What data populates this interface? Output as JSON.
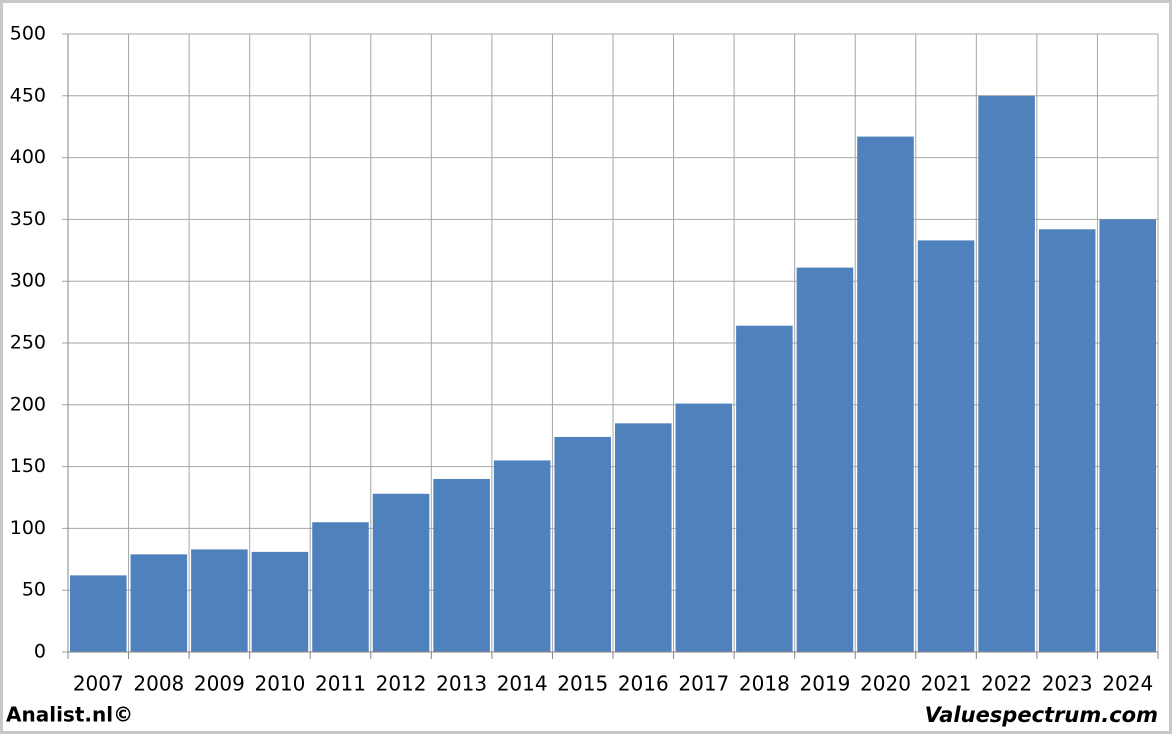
{
  "chart_data": {
    "type": "bar",
    "categories": [
      "2007",
      "2008",
      "2009",
      "2010",
      "2011",
      "2012",
      "2013",
      "2014",
      "2015",
      "2016",
      "2017",
      "2018",
      "2019",
      "2020",
      "2021",
      "2022",
      "2023",
      "2024"
    ],
    "values": [
      62,
      79,
      83,
      81,
      105,
      128,
      140,
      155,
      174,
      185,
      201,
      264,
      311,
      417,
      333,
      450,
      342,
      350
    ],
    "color": "#4f81bd",
    "ylim": [
      0,
      500
    ],
    "yticks": [
      0,
      50,
      100,
      150,
      200,
      250,
      300,
      350,
      400,
      450,
      500
    ],
    "grid": true,
    "credit_left": "Analist.nl©",
    "credit_right": "Valuespectrum.com"
  }
}
